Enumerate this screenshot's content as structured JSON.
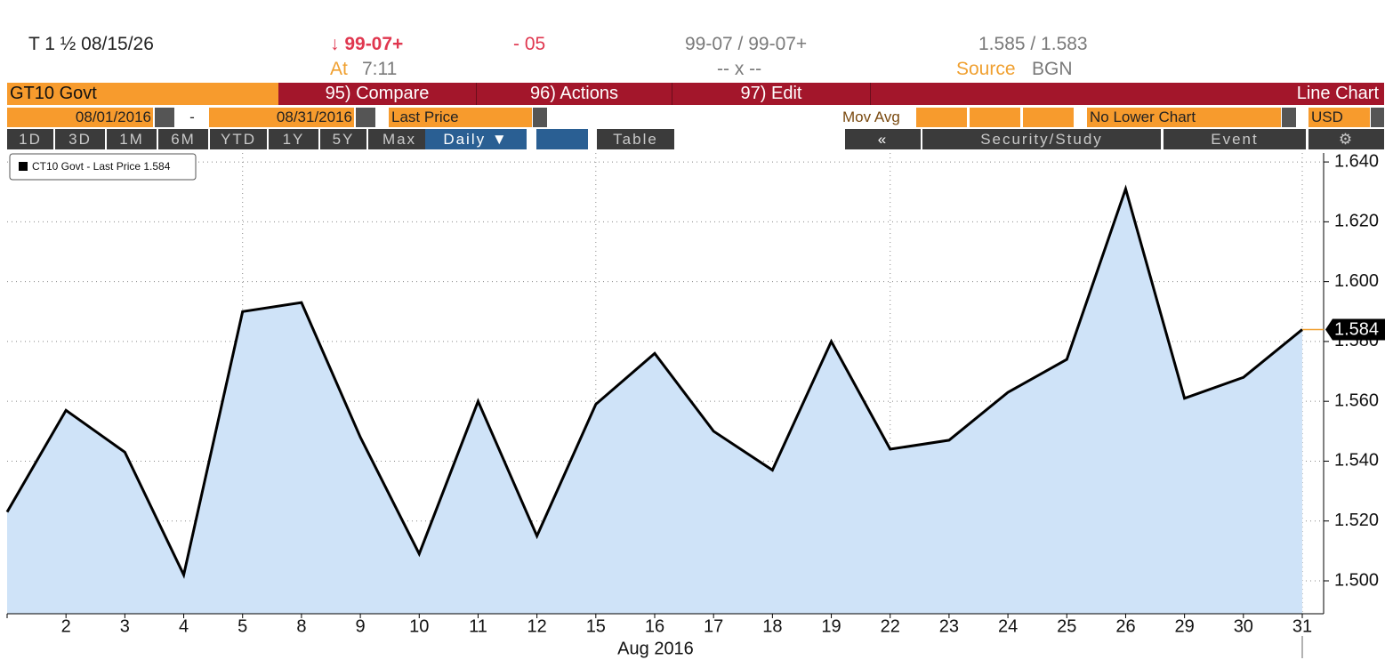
{
  "header": {
    "security": "T 1 ½ 08/15/26",
    "last": "↓ 99-07+",
    "change": "- 05",
    "bid_ask": "99-07 / 99-07+",
    "yields": "1.585 / 1.583",
    "time_label": "At",
    "time": "7:11",
    "size": "-- x --",
    "source_label": "Source",
    "source": "BGN"
  },
  "toolbar": {
    "ticker": "GT10 Govt",
    "compare": "95) Compare",
    "actions": "96) Actions",
    "edit": "97) Edit",
    "chart_type": "Line Chart",
    "start_date": "08/01/2016",
    "date_sep": "-",
    "end_date": "08/31/2016",
    "field": "Last Price",
    "mov_avg": "Mov Avg",
    "lower_chart": "No Lower Chart",
    "currency": "USD",
    "ranges": [
      "1D",
      "3D",
      "1M",
      "6M",
      "YTD",
      "1Y",
      "5Y",
      "Max"
    ],
    "period": "Daily ▼",
    "table": "Table",
    "security_study": "Security/Study",
    "event": "Event"
  },
  "chart_data": {
    "type": "area",
    "x_label": "Aug 2016",
    "categories": [
      null,
      "2",
      "3",
      "4",
      "5",
      "8",
      "9",
      "10",
      "11",
      "12",
      "15",
      "16",
      "17",
      "18",
      "19",
      "22",
      "23",
      "24",
      "25",
      "26",
      "29",
      "30",
      "31"
    ],
    "series": [
      {
        "name": "CT10 Govt - Last Price 1.584",
        "color": "#000000",
        "fill": "#cfe3f8",
        "values": [
          1.523,
          1.557,
          1.543,
          1.502,
          1.59,
          1.593,
          1.548,
          1.509,
          1.56,
          1.515,
          1.559,
          1.576,
          1.55,
          1.537,
          1.58,
          1.544,
          1.547,
          1.563,
          1.574,
          1.631,
          1.561,
          1.568,
          1.584
        ]
      }
    ],
    "ylim": [
      1.489,
      1.643
    ],
    "yticks": [
      {
        "value": 1.5,
        "label": "1.500"
      },
      {
        "value": 1.52,
        "label": "1.520"
      },
      {
        "value": 1.54,
        "label": "1.540"
      },
      {
        "value": 1.56,
        "label": "1.560"
      },
      {
        "value": 1.58,
        "label": "1.580"
      },
      {
        "value": 1.6,
        "label": "1.600"
      },
      {
        "value": 1.62,
        "label": "1.620"
      },
      {
        "value": 1.64,
        "label": "1.640"
      }
    ],
    "grid": true,
    "last_marker_color": "#f0a030"
  }
}
